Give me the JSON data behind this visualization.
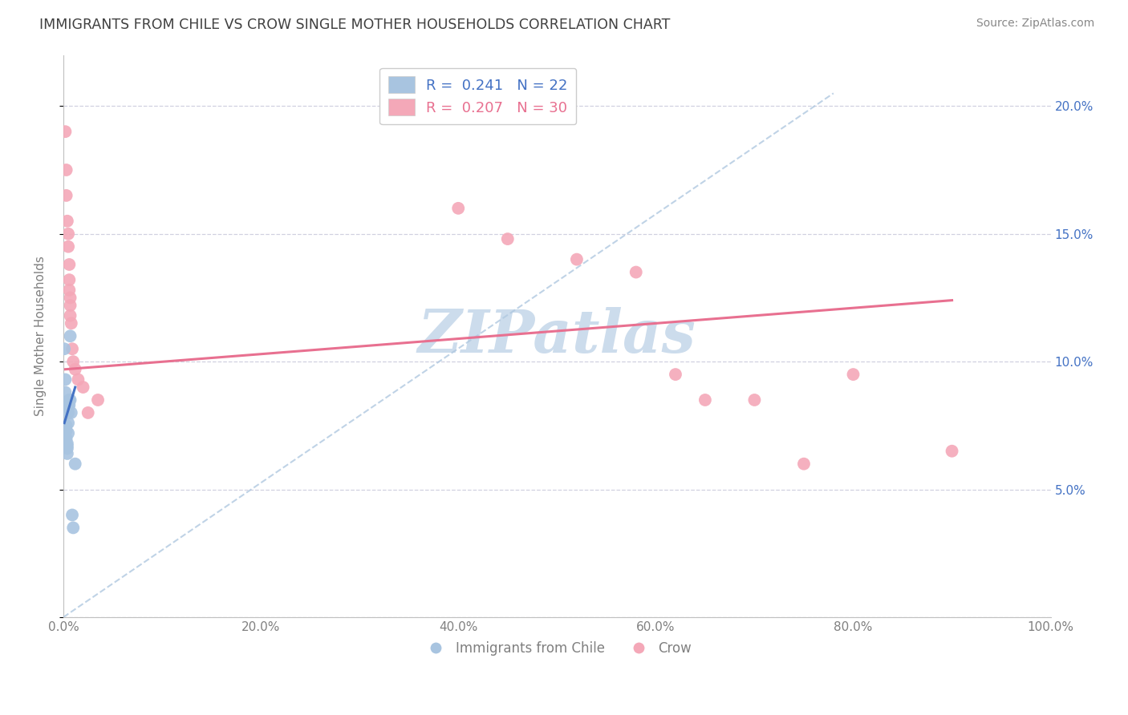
{
  "title": "IMMIGRANTS FROM CHILE VS CROW SINGLE MOTHER HOUSEHOLDS CORRELATION CHART",
  "source": "Source: ZipAtlas.com",
  "ylabel": "Single Mother Households",
  "xlim": [
    0.0,
    1.0
  ],
  "ylim": [
    0.0,
    0.22
  ],
  "xticks": [
    0.0,
    0.2,
    0.4,
    0.6,
    0.8,
    1.0
  ],
  "xticklabels": [
    "0.0%",
    "20.0%",
    "40.0%",
    "60.0%",
    "80.0%",
    "100.0%"
  ],
  "yticks": [
    0.0,
    0.05,
    0.1,
    0.15,
    0.2
  ],
  "yticklabels": [
    "",
    "5.0%",
    "10.0%",
    "15.0%",
    "20.0%"
  ],
  "legend_labels": [
    "Immigrants from Chile",
    "Crow"
  ],
  "r_chile": 0.241,
  "n_chile": 22,
  "r_crow": 0.207,
  "n_crow": 30,
  "chile_color": "#a8c4e0",
  "crow_color": "#f4a8b8",
  "chile_line_color": "#4472c4",
  "crow_line_color": "#e87090",
  "dashed_line_color": "#b0c8e0",
  "watermark": "ZIPatlas",
  "watermark_color": "#ccdcec",
  "background_color": "#ffffff",
  "grid_color": "#d0d0e0",
  "title_color": "#404040",
  "axis_color": "#808080",
  "right_axis_color": "#4472c4",
  "chile_scatter_x": [
    0.001,
    0.002,
    0.002,
    0.003,
    0.003,
    0.003,
    0.004,
    0.004,
    0.004,
    0.004,
    0.005,
    0.005,
    0.005,
    0.005,
    0.006,
    0.006,
    0.007,
    0.007,
    0.008,
    0.009,
    0.01,
    0.012
  ],
  "chile_scatter_y": [
    0.105,
    0.093,
    0.088,
    0.075,
    0.073,
    0.07,
    0.068,
    0.067,
    0.066,
    0.064,
    0.082,
    0.08,
    0.076,
    0.072,
    0.085,
    0.083,
    0.11,
    0.085,
    0.08,
    0.04,
    0.035,
    0.06
  ],
  "crow_scatter_x": [
    0.002,
    0.003,
    0.003,
    0.004,
    0.005,
    0.005,
    0.006,
    0.006,
    0.006,
    0.007,
    0.007,
    0.007,
    0.008,
    0.009,
    0.01,
    0.012,
    0.015,
    0.02,
    0.025,
    0.035,
    0.4,
    0.45,
    0.52,
    0.58,
    0.62,
    0.65,
    0.7,
    0.75,
    0.8,
    0.9
  ],
  "crow_scatter_y": [
    0.19,
    0.175,
    0.165,
    0.155,
    0.15,
    0.145,
    0.138,
    0.132,
    0.128,
    0.125,
    0.122,
    0.118,
    0.115,
    0.105,
    0.1,
    0.097,
    0.093,
    0.09,
    0.08,
    0.085,
    0.16,
    0.148,
    0.14,
    0.135,
    0.095,
    0.085,
    0.085,
    0.06,
    0.095,
    0.065
  ],
  "chile_line_x": [
    0.001,
    0.012
  ],
  "chile_line_y": [
    0.076,
    0.09
  ],
  "crow_line_x": [
    0.002,
    0.9
  ],
  "crow_line_y": [
    0.097,
    0.124
  ],
  "dashed_line_x": [
    0.0,
    0.78
  ],
  "dashed_line_y": [
    0.0,
    0.205
  ]
}
